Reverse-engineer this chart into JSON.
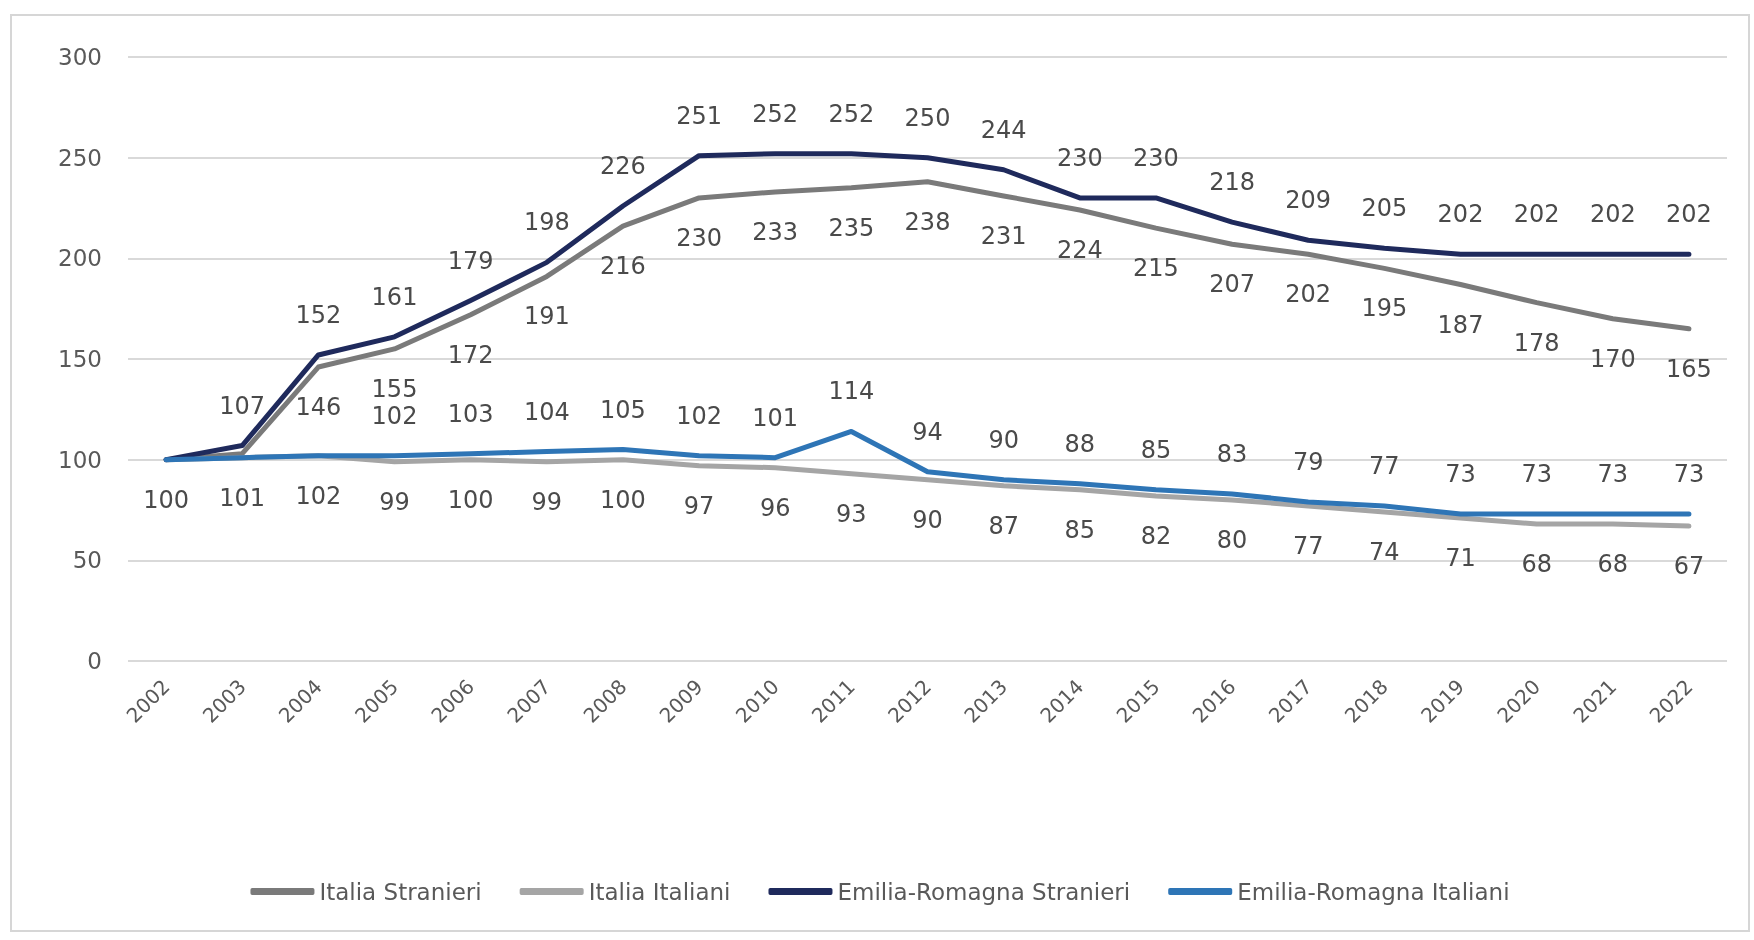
{
  "chart_data": {
    "type": "line",
    "categories": [
      "2002",
      "2003",
      "2004",
      "2005",
      "2006",
      "2007",
      "2008",
      "2009",
      "2010",
      "2011",
      "2012",
      "2013",
      "2014",
      "2015",
      "2016",
      "2017",
      "2018",
      "2019",
      "2020",
      "2021",
      "2022"
    ],
    "series": [
      {
        "name": "Italia Stranieri",
        "color": "#7a7a7a",
        "values": [
          100,
          103,
          146,
          155,
          172,
          191,
          216,
          230,
          233,
          235,
          238,
          231,
          224,
          215,
          207,
          202,
          195,
          187,
          178,
          170,
          165
        ],
        "value_labels": [
          null,
          null,
          "146",
          "155",
          "172",
          "191",
          "216",
          "230",
          "233",
          "235",
          "238",
          "231",
          "224",
          "215",
          "207",
          "202",
          "195",
          "187",
          "178",
          "170",
          "165"
        ]
      },
      {
        "name": "Italia Italiani",
        "color": "#a5a5a5",
        "values": [
          100,
          101,
          102,
          99,
          100,
          99,
          100,
          97,
          96,
          93,
          90,
          87,
          85,
          82,
          80,
          77,
          74,
          71,
          68,
          68,
          67
        ],
        "value_labels": [
          "100",
          "101",
          "102",
          "99",
          "100",
          "99",
          "100",
          "97",
          "96",
          "93",
          "90",
          "87",
          "85",
          "82",
          "80",
          "77",
          "74",
          "71",
          "68",
          "68",
          "67"
        ]
      },
      {
        "name": "Emilia-Romagna Stranieri",
        "color": "#1f2a5c",
        "values": [
          100,
          107,
          152,
          161,
          179,
          198,
          226,
          251,
          252,
          252,
          250,
          244,
          230,
          230,
          218,
          209,
          205,
          202,
          202,
          202,
          202
        ],
        "value_labels": [
          null,
          "107",
          "152",
          "161",
          "179",
          "198",
          "226",
          "251",
          "252",
          "252",
          "250",
          "244",
          "230",
          "230",
          "218",
          "209",
          "205",
          "202",
          "202",
          "202",
          "202"
        ]
      },
      {
        "name": "Emilia-Romagna Italiani",
        "color": "#2e75b6",
        "values": [
          100,
          101,
          102,
          102,
          103,
          104,
          105,
          102,
          101,
          114,
          94,
          90,
          88,
          85,
          83,
          79,
          77,
          73,
          73,
          73,
          73
        ],
        "value_labels": [
          null,
          null,
          null,
          "102",
          "103",
          "104",
          "105",
          "102",
          "101",
          "114",
          "94",
          "90",
          "88",
          "85",
          "83",
          "79",
          "77",
          "73",
          "73",
          "73",
          "73"
        ]
      }
    ],
    "ylim": [
      0,
      300
    ],
    "yticks": [
      0,
      50,
      100,
      150,
      200,
      250,
      300
    ],
    "grid": "y",
    "legend": "bottom",
    "marker": "none",
    "line_style": "solid"
  }
}
